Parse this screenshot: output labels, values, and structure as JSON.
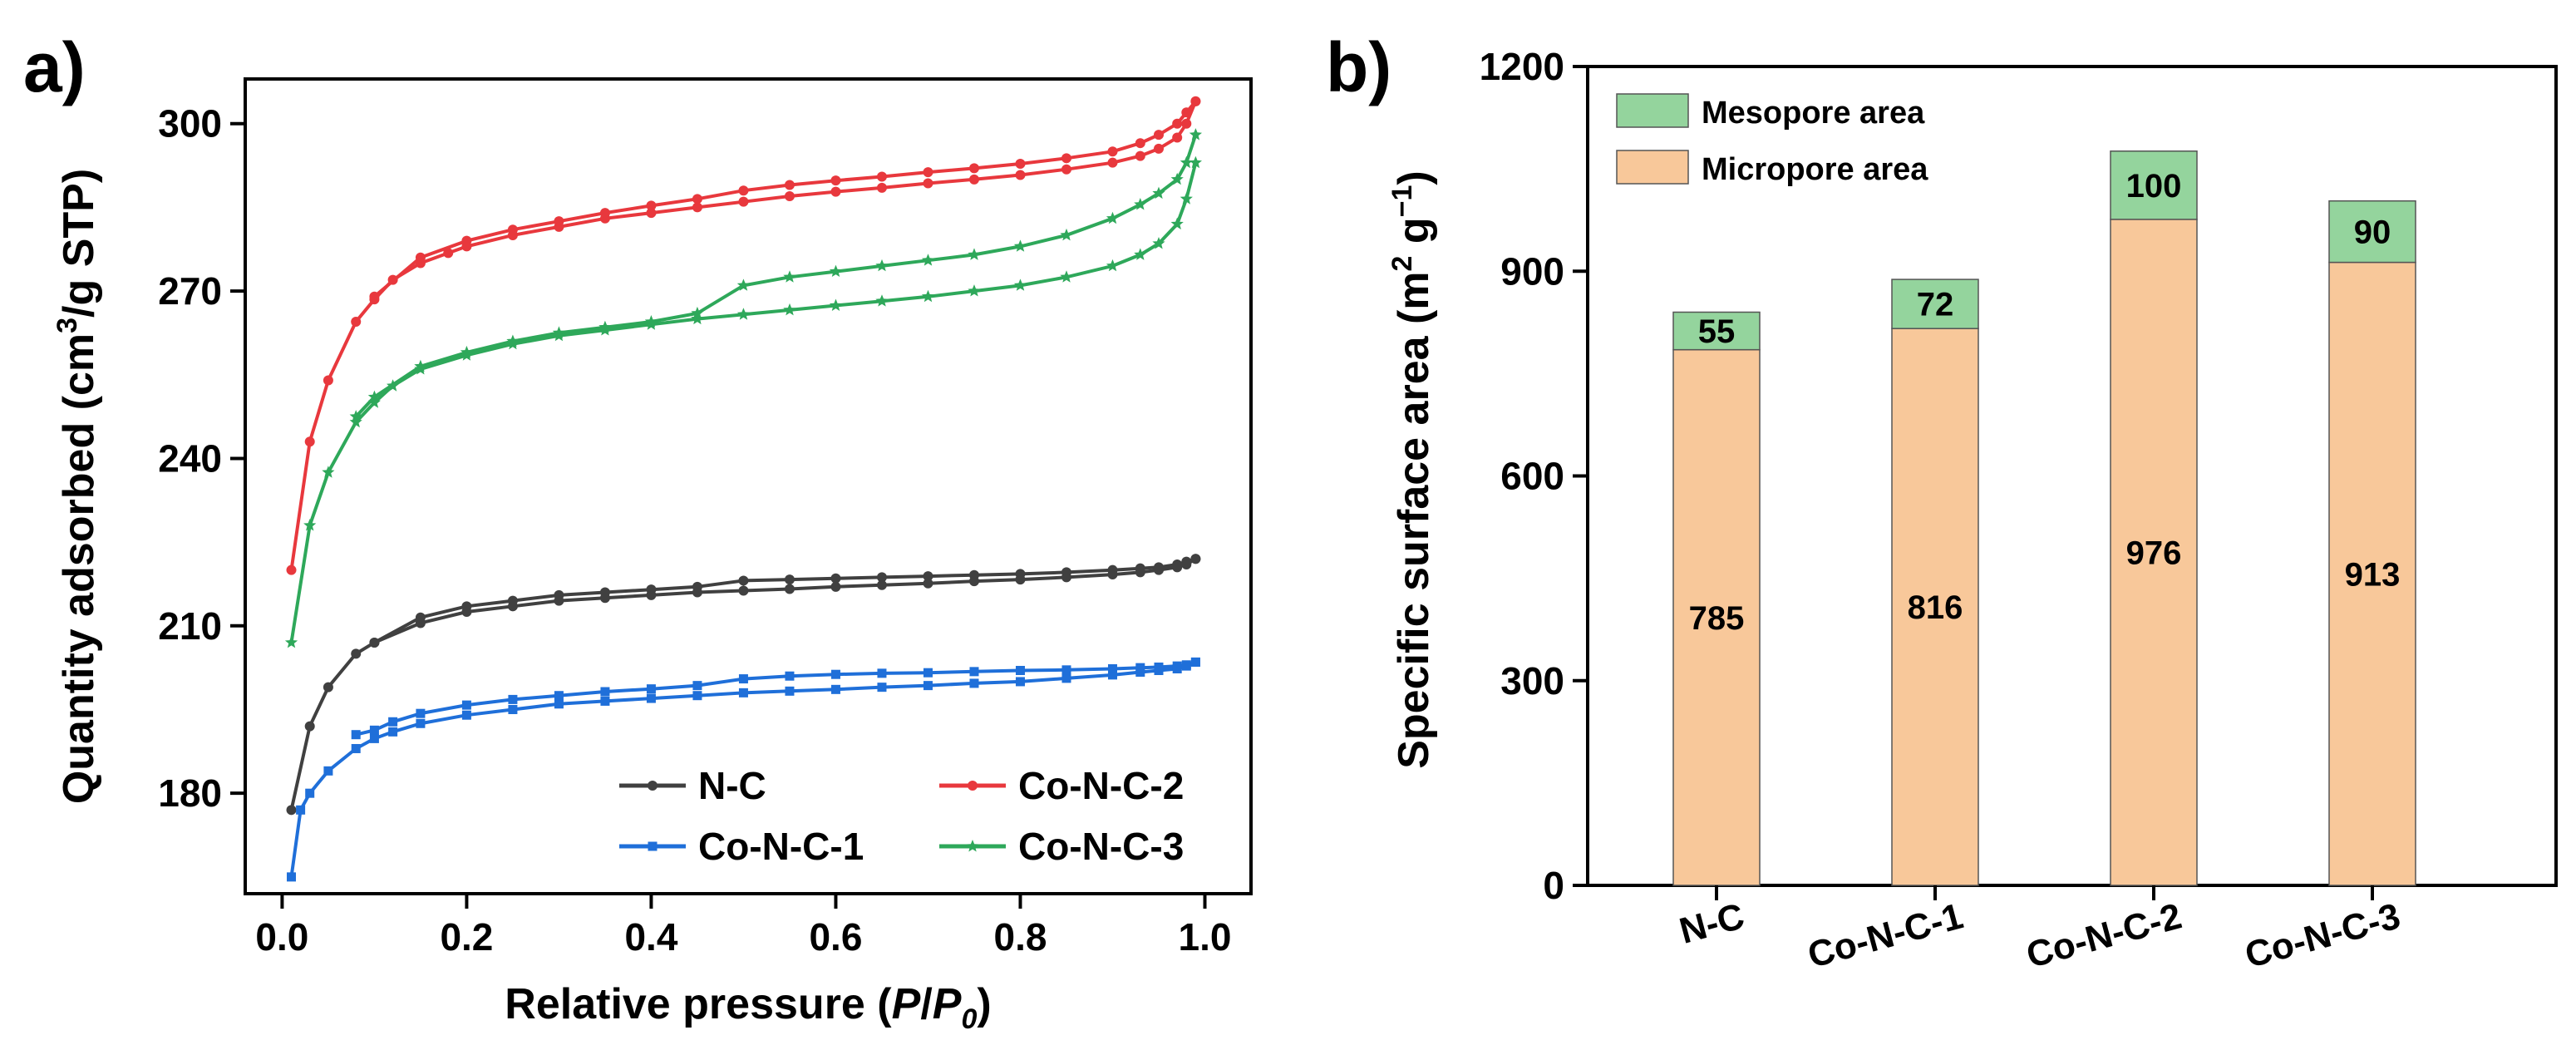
{
  "chart_data": [
    {
      "type": "line",
      "panel_label": "a)",
      "xlabel_prefix": "Relative pressure (",
      "xlabel_italic_1": "P",
      "xlabel_slash": "/",
      "xlabel_italic_2": "P",
      "xlabel_sub": "0",
      "xlabel_suffix": ")",
      "ylabel_prefix": "Quantity adsorbed (cm",
      "ylabel_sup": "3",
      "ylabel_suffix": "/g STP)",
      "xlim": [
        -0.04,
        1.05
      ],
      "ylim": [
        162,
        308
      ],
      "xticks": [
        0.0,
        0.2,
        0.4,
        0.6,
        0.8,
        1.0
      ],
      "xtick_labels": [
        "0.0",
        "0.2",
        "0.4",
        "0.6",
        "0.8",
        "1.0"
      ],
      "yticks": [
        180,
        210,
        240,
        270,
        300
      ],
      "ytick_labels": [
        "180",
        "210",
        "240",
        "270",
        "300"
      ],
      "legend_position": "bottom-right",
      "series": [
        {
          "name": "N-C",
          "color": "#404040",
          "marker": "circle",
          "adsorption": {
            "x": [
              0.01,
              0.03,
              0.05,
              0.08,
              0.1,
              0.15,
              0.2,
              0.25,
              0.3,
              0.35,
              0.4,
              0.45,
              0.5,
              0.55,
              0.6,
              0.65,
              0.7,
              0.75,
              0.8,
              0.85,
              0.9,
              0.93,
              0.95,
              0.97,
              0.98,
              0.99
            ],
            "y": [
              177,
              192,
              199,
              205,
              207,
              210.5,
              212.5,
              213.5,
              214.5,
              215,
              215.5,
              216,
              216.3,
              216.6,
              217,
              217.3,
              217.6,
              218,
              218.3,
              218.7,
              219.2,
              219.6,
              220,
              220.5,
              221,
              222
            ]
          },
          "desorption": {
            "x": [
              0.99,
              0.98,
              0.97,
              0.95,
              0.93,
              0.9,
              0.85,
              0.8,
              0.75,
              0.7,
              0.65,
              0.6,
              0.55,
              0.5,
              0.45,
              0.4,
              0.35,
              0.3,
              0.25,
              0.2,
              0.15,
              0.1
            ],
            "y": [
              222,
              221.5,
              221,
              220.5,
              220.3,
              220,
              219.6,
              219.3,
              219.1,
              218.9,
              218.7,
              218.5,
              218.3,
              218.1,
              217,
              216.5,
              216,
              215.5,
              214.5,
              213.5,
              211.5,
              207
            ]
          }
        },
        {
          "name": "Co-N-C-2",
          "color": "#E8383D",
          "marker": "circle",
          "adsorption": {
            "x": [
              0.01,
              0.03,
              0.05,
              0.08,
              0.1,
              0.12,
              0.15,
              0.18,
              0.2,
              0.25,
              0.3,
              0.35,
              0.4,
              0.45,
              0.5,
              0.55,
              0.6,
              0.65,
              0.7,
              0.75,
              0.8,
              0.85,
              0.9,
              0.93,
              0.95,
              0.97,
              0.98,
              0.99
            ],
            "y": [
              220,
              243,
              254,
              264.5,
              268.5,
              272,
              275,
              276.8,
              278,
              280,
              281.5,
              283,
              284,
              285,
              286,
              287,
              287.8,
              288.5,
              289.3,
              290,
              290.8,
              291.8,
              293,
              294.2,
              295.5,
              297.5,
              300,
              304
            ]
          },
          "desorption": {
            "x": [
              0.99,
              0.98,
              0.97,
              0.95,
              0.93,
              0.9,
              0.85,
              0.8,
              0.75,
              0.7,
              0.65,
              0.6,
              0.55,
              0.5,
              0.45,
              0.4,
              0.35,
              0.3,
              0.25,
              0.2,
              0.15,
              0.1
            ],
            "y": [
              304,
              302,
              300,
              298,
              296.5,
              295,
              293.8,
              292.8,
              292,
              291.3,
              290.5,
              289.8,
              289,
              288,
              286.5,
              285.3,
              284,
              282.5,
              281,
              279,
              276,
              269
            ]
          }
        },
        {
          "name": "Co-N-C-1",
          "color": "#1F6FD9",
          "marker": "square",
          "adsorption": {
            "x": [
              0.01,
              0.02,
              0.03,
              0.05,
              0.08,
              0.1,
              0.12,
              0.15,
              0.2,
              0.25,
              0.3,
              0.35,
              0.4,
              0.45,
              0.5,
              0.55,
              0.6,
              0.65,
              0.7,
              0.75,
              0.8,
              0.85,
              0.9,
              0.93,
              0.95,
              0.97,
              0.98,
              0.99
            ],
            "y": [
              165,
              177,
              180,
              184,
              188,
              189.8,
              191,
              192.5,
              194,
              195,
              196,
              196.5,
              197,
              197.5,
              198,
              198.3,
              198.6,
              199,
              199.3,
              199.7,
              200,
              200.6,
              201.2,
              201.7,
              202,
              202.3,
              202.8,
              203.5
            ]
          },
          "desorption": {
            "x": [
              0.99,
              0.98,
              0.97,
              0.95,
              0.93,
              0.9,
              0.85,
              0.8,
              0.75,
              0.7,
              0.65,
              0.6,
              0.55,
              0.5,
              0.45,
              0.4,
              0.35,
              0.3,
              0.25,
              0.2,
              0.15,
              0.12,
              0.1,
              0.08
            ],
            "y": [
              203.5,
              203,
              202.8,
              202.6,
              202.5,
              202.3,
              202.1,
              202,
              201.8,
              201.6,
              201.5,
              201.3,
              201,
              200.5,
              199.3,
              198.7,
              198.2,
              197.5,
              196.8,
              195.8,
              194.3,
              192.8,
              191.3,
              190.5
            ]
          }
        },
        {
          "name": "Co-N-C-3",
          "color": "#2EA85A",
          "marker": "star",
          "adsorption": {
            "x": [
              0.01,
              0.03,
              0.05,
              0.08,
              0.1,
              0.12,
              0.15,
              0.2,
              0.25,
              0.3,
              0.35,
              0.4,
              0.45,
              0.5,
              0.55,
              0.6,
              0.65,
              0.7,
              0.75,
              0.8,
              0.85,
              0.9,
              0.93,
              0.95,
              0.97,
              0.98,
              0.99
            ],
            "y": [
              207,
              228,
              237.5,
              246.5,
              250,
              253,
              256,
              258.5,
              260.5,
              262,
              263,
              264,
              265,
              265.8,
              266.6,
              267.4,
              268.2,
              269,
              270,
              271,
              272.5,
              274.5,
              276.5,
              278.5,
              282,
              286.5,
              293
            ]
          },
          "desorption": {
            "x": [
              0.99,
              0.98,
              0.97,
              0.95,
              0.93,
              0.9,
              0.85,
              0.8,
              0.75,
              0.7,
              0.65,
              0.6,
              0.55,
              0.5,
              0.45,
              0.4,
              0.35,
              0.3,
              0.25,
              0.2,
              0.15,
              0.1,
              0.08
            ],
            "y": [
              298,
              293,
              290,
              287.5,
              285.5,
              283,
              280,
              278,
              276.5,
              275.5,
              274.5,
              273.5,
              272.5,
              271,
              266,
              264.5,
              263.5,
              262.5,
              261,
              259,
              256.5,
              251,
              247.5
            ]
          }
        }
      ]
    },
    {
      "type": "bar",
      "stacked": true,
      "panel_label": "b)",
      "ylabel_prefix": "Specific surface area (m",
      "ylabel_sup1": "2",
      "ylabel_mid": " g",
      "ylabel_sup2": "−1",
      "ylabel_suffix": ")",
      "ylim": [
        0,
        1200
      ],
      "yticks": [
        0,
        300,
        600,
        900,
        1200
      ],
      "ytick_labels": [
        "0",
        "300",
        "600",
        "900",
        "1200"
      ],
      "categories": [
        "N-C",
        "Co-N-C-1",
        "Co-N-C-2",
        "Co-N-C-3"
      ],
      "legend_position": "top-left",
      "series": [
        {
          "name": "Micropore area",
          "color": "#F8C89A",
          "values": [
            785,
            816,
            976,
            913
          ],
          "labels": [
            "785",
            "816",
            "976",
            "913"
          ]
        },
        {
          "name": "Mesopore area",
          "color": "#94D49D",
          "values": [
            55,
            72,
            100,
            90
          ],
          "labels": [
            "55",
            "72",
            "100",
            "90"
          ]
        }
      ]
    }
  ]
}
